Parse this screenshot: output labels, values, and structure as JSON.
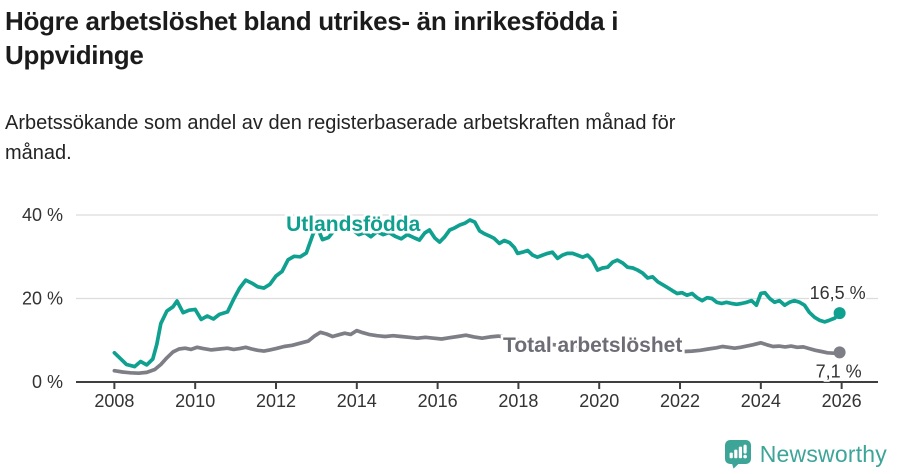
{
  "header": {
    "title_line1": "Högre arbetslöshet bland utrikes- än inrikesfödda i",
    "title_line2": "Uppvidinge",
    "subtitle_line1": "Arbetssökande som andel av den registerbaserade arbetskraften månad för",
    "subtitle_line2": "månad."
  },
  "footer": {
    "brand": "Newsworthy",
    "logo_icon": "bar-chart-speech-bubble-icon"
  },
  "colors": {
    "accent_teal": "#0fa08f",
    "line_gray": "#7e7e86",
    "label_gray": "#6d6d75",
    "axis": "#3f3f3f",
    "grid": "#dcdcdc",
    "tick_text": "#333333",
    "value_text": "#333333",
    "logo_teal": "#3da498"
  },
  "chart_data": {
    "type": "line",
    "x_ticks": [
      2008,
      2010,
      2012,
      2014,
      2016,
      2018,
      2020,
      2022,
      2024,
      2026
    ],
    "x_range": [
      2007.05,
      2026.9
    ],
    "y_ticks": [
      {
        "value": 0,
        "label": "0 %"
      },
      {
        "value": 20,
        "label": "20 %"
      },
      {
        "value": 40,
        "label": "40 %"
      }
    ],
    "y_range": [
      0,
      40
    ],
    "grid": "horizontal",
    "legend_position": "inline-labels",
    "series": [
      {
        "name": "Utlandsfödda",
        "color": "#0fa08f",
        "end_label": "16,5 %",
        "end_label_pos": "above",
        "label_anchor": {
          "x": 2012.25,
          "y": 36.2
        },
        "points": [
          [
            2008.0,
            7.0
          ],
          [
            2008.15,
            5.6
          ],
          [
            2008.3,
            4.2
          ],
          [
            2008.5,
            3.7
          ],
          [
            2008.65,
            4.9
          ],
          [
            2008.8,
            4.1
          ],
          [
            2008.95,
            5.5
          ],
          [
            2009.05,
            9.0
          ],
          [
            2009.15,
            14.0
          ],
          [
            2009.3,
            17.0
          ],
          [
            2009.45,
            18.0
          ],
          [
            2009.55,
            19.4
          ],
          [
            2009.7,
            16.6
          ],
          [
            2009.85,
            17.2
          ],
          [
            2010.0,
            17.4
          ],
          [
            2010.15,
            15.0
          ],
          [
            2010.3,
            15.8
          ],
          [
            2010.45,
            15.1
          ],
          [
            2010.6,
            16.2
          ],
          [
            2010.8,
            16.8
          ],
          [
            2010.95,
            19.8
          ],
          [
            2011.1,
            22.5
          ],
          [
            2011.25,
            24.4
          ],
          [
            2011.4,
            23.7
          ],
          [
            2011.55,
            22.8
          ],
          [
            2011.7,
            22.5
          ],
          [
            2011.85,
            23.4
          ],
          [
            2012.0,
            25.4
          ],
          [
            2012.15,
            26.5
          ],
          [
            2012.3,
            29.3
          ],
          [
            2012.45,
            30.1
          ],
          [
            2012.6,
            30.0
          ],
          [
            2012.75,
            30.9
          ],
          [
            2012.9,
            35.0
          ],
          [
            2013.0,
            37.5
          ],
          [
            2013.15,
            34.1
          ],
          [
            2013.3,
            34.6
          ],
          [
            2013.45,
            36.4
          ],
          [
            2013.6,
            36.9
          ],
          [
            2013.75,
            36.4
          ],
          [
            2013.9,
            36.4
          ],
          [
            2014.05,
            35.3
          ],
          [
            2014.2,
            35.8
          ],
          [
            2014.35,
            34.8
          ],
          [
            2014.5,
            36.0
          ],
          [
            2014.65,
            35.3
          ],
          [
            2014.8,
            35.8
          ],
          [
            2014.95,
            34.9
          ],
          [
            2015.1,
            34.3
          ],
          [
            2015.25,
            35.3
          ],
          [
            2015.43,
            34.5
          ],
          [
            2015.55,
            34.0
          ],
          [
            2015.68,
            35.7
          ],
          [
            2015.8,
            36.4
          ],
          [
            2015.93,
            34.5
          ],
          [
            2016.05,
            33.5
          ],
          [
            2016.17,
            34.7
          ],
          [
            2016.3,
            36.4
          ],
          [
            2016.42,
            36.9
          ],
          [
            2016.55,
            37.6
          ],
          [
            2016.67,
            38.0
          ],
          [
            2016.8,
            38.8
          ],
          [
            2016.92,
            38.3
          ],
          [
            2017.04,
            36.2
          ],
          [
            2017.16,
            35.5
          ],
          [
            2017.28,
            35.0
          ],
          [
            2017.4,
            34.4
          ],
          [
            2017.53,
            33.2
          ],
          [
            2017.65,
            33.9
          ],
          [
            2017.78,
            33.4
          ],
          [
            2017.9,
            32.2
          ],
          [
            2017.98,
            30.8
          ],
          [
            2018.1,
            31.1
          ],
          [
            2018.23,
            31.5
          ],
          [
            2018.35,
            30.4
          ],
          [
            2018.47,
            29.9
          ],
          [
            2018.6,
            30.4
          ],
          [
            2018.72,
            30.8
          ],
          [
            2018.84,
            31.1
          ],
          [
            2018.97,
            29.6
          ],
          [
            2019.09,
            30.4
          ],
          [
            2019.21,
            30.8
          ],
          [
            2019.34,
            30.8
          ],
          [
            2019.46,
            30.4
          ],
          [
            2019.59,
            29.9
          ],
          [
            2019.71,
            30.4
          ],
          [
            2019.83,
            29.2
          ],
          [
            2019.96,
            26.8
          ],
          [
            2020.08,
            27.3
          ],
          [
            2020.21,
            27.5
          ],
          [
            2020.33,
            28.7
          ],
          [
            2020.45,
            29.2
          ],
          [
            2020.58,
            28.5
          ],
          [
            2020.7,
            27.5
          ],
          [
            2020.83,
            27.3
          ],
          [
            2020.95,
            26.8
          ],
          [
            2021.07,
            26.1
          ],
          [
            2021.2,
            24.9
          ],
          [
            2021.32,
            25.2
          ],
          [
            2021.45,
            24.0
          ],
          [
            2021.57,
            23.3
          ],
          [
            2021.69,
            22.6
          ],
          [
            2021.81,
            21.9
          ],
          [
            2021.93,
            21.2
          ],
          [
            2022.05,
            21.4
          ],
          [
            2022.17,
            20.8
          ],
          [
            2022.3,
            21.2
          ],
          [
            2022.42,
            20.2
          ],
          [
            2022.55,
            19.5
          ],
          [
            2022.67,
            20.2
          ],
          [
            2022.79,
            20.0
          ],
          [
            2022.91,
            19.1
          ],
          [
            2023.03,
            18.8
          ],
          [
            2023.15,
            19.1
          ],
          [
            2023.28,
            18.8
          ],
          [
            2023.4,
            18.6
          ],
          [
            2023.52,
            18.8
          ],
          [
            2023.65,
            19.1
          ],
          [
            2023.77,
            19.5
          ],
          [
            2023.89,
            18.4
          ],
          [
            2024.0,
            21.2
          ],
          [
            2024.1,
            21.4
          ],
          [
            2024.22,
            20.0
          ],
          [
            2024.34,
            19.1
          ],
          [
            2024.46,
            19.5
          ],
          [
            2024.59,
            18.4
          ],
          [
            2024.71,
            19.1
          ],
          [
            2024.83,
            19.5
          ],
          [
            2024.96,
            19.1
          ],
          [
            2025.08,
            18.4
          ],
          [
            2025.2,
            16.7
          ],
          [
            2025.33,
            15.5
          ],
          [
            2025.45,
            14.8
          ],
          [
            2025.58,
            14.4
          ],
          [
            2025.7,
            14.8
          ],
          [
            2025.83,
            15.3
          ],
          [
            2025.95,
            16.5
          ]
        ]
      },
      {
        "name": "Total arbetslöshet",
        "color": "#7e7e86",
        "label_color": "#6d6d75",
        "end_label": "7,1 %",
        "end_label_pos": "below",
        "label_anchor": {
          "x": 2017.62,
          "y": 7.2
        },
        "points": [
          [
            2008.0,
            2.7
          ],
          [
            2008.2,
            2.4
          ],
          [
            2008.4,
            2.2
          ],
          [
            2008.6,
            2.1
          ],
          [
            2008.8,
            2.3
          ],
          [
            2009.0,
            3.0
          ],
          [
            2009.15,
            4.2
          ],
          [
            2009.3,
            5.8
          ],
          [
            2009.45,
            7.2
          ],
          [
            2009.6,
            7.9
          ],
          [
            2009.75,
            8.1
          ],
          [
            2009.9,
            7.8
          ],
          [
            2010.05,
            8.3
          ],
          [
            2010.2,
            8.0
          ],
          [
            2010.4,
            7.7
          ],
          [
            2010.6,
            7.9
          ],
          [
            2010.8,
            8.1
          ],
          [
            2010.95,
            7.8
          ],
          [
            2011.1,
            8.0
          ],
          [
            2011.25,
            8.3
          ],
          [
            2011.4,
            7.9
          ],
          [
            2011.55,
            7.6
          ],
          [
            2011.7,
            7.4
          ],
          [
            2011.85,
            7.7
          ],
          [
            2012.0,
            8.0
          ],
          [
            2012.2,
            8.5
          ],
          [
            2012.4,
            8.8
          ],
          [
            2012.6,
            9.3
          ],
          [
            2012.8,
            9.8
          ],
          [
            2012.95,
            11.0
          ],
          [
            2013.1,
            11.9
          ],
          [
            2013.25,
            11.5
          ],
          [
            2013.4,
            10.9
          ],
          [
            2013.55,
            11.3
          ],
          [
            2013.7,
            11.7
          ],
          [
            2013.85,
            11.4
          ],
          [
            2014.0,
            12.3
          ],
          [
            2014.15,
            11.8
          ],
          [
            2014.3,
            11.4
          ],
          [
            2014.5,
            11.1
          ],
          [
            2014.7,
            10.9
          ],
          [
            2014.9,
            11.1
          ],
          [
            2015.1,
            10.9
          ],
          [
            2015.3,
            10.7
          ],
          [
            2015.5,
            10.5
          ],
          [
            2015.7,
            10.7
          ],
          [
            2015.9,
            10.5
          ],
          [
            2016.1,
            10.3
          ],
          [
            2016.3,
            10.6
          ],
          [
            2016.5,
            10.9
          ],
          [
            2016.7,
            11.2
          ],
          [
            2016.9,
            10.8
          ],
          [
            2017.1,
            10.5
          ],
          [
            2017.3,
            10.8
          ],
          [
            2017.5,
            11.0
          ],
          [
            2017.7,
            10.7
          ],
          [
            2017.9,
            10.3
          ],
          [
            2018.1,
            9.9
          ],
          [
            2018.3,
            9.6
          ],
          [
            2018.5,
            9.3
          ],
          [
            2018.7,
            9.1
          ],
          [
            2018.9,
            8.9
          ],
          [
            2019.1,
            8.8
          ],
          [
            2019.3,
            8.6
          ],
          [
            2019.5,
            8.5
          ],
          [
            2019.7,
            8.6
          ],
          [
            2019.9,
            8.5
          ],
          [
            2020.1,
            8.8
          ],
          [
            2020.3,
            9.5
          ],
          [
            2020.5,
            9.3
          ],
          [
            2020.7,
            9.1
          ],
          [
            2020.9,
            8.8
          ],
          [
            2021.1,
            8.5
          ],
          [
            2021.3,
            8.2
          ],
          [
            2021.5,
            8.0
          ],
          [
            2021.7,
            7.8
          ],
          [
            2021.9,
            7.6
          ],
          [
            2022.1,
            7.3
          ],
          [
            2022.3,
            7.4
          ],
          [
            2022.5,
            7.6
          ],
          [
            2022.7,
            7.9
          ],
          [
            2022.9,
            8.2
          ],
          [
            2023.05,
            8.5
          ],
          [
            2023.2,
            8.3
          ],
          [
            2023.35,
            8.1
          ],
          [
            2023.5,
            8.3
          ],
          [
            2023.65,
            8.6
          ],
          [
            2023.8,
            8.9
          ],
          [
            2024.0,
            9.4
          ],
          [
            2024.15,
            8.9
          ],
          [
            2024.3,
            8.5
          ],
          [
            2024.45,
            8.6
          ],
          [
            2024.6,
            8.4
          ],
          [
            2024.75,
            8.6
          ],
          [
            2024.9,
            8.3
          ],
          [
            2025.05,
            8.4
          ],
          [
            2025.2,
            8.0
          ],
          [
            2025.35,
            7.6
          ],
          [
            2025.5,
            7.3
          ],
          [
            2025.65,
            7.0
          ],
          [
            2025.8,
            6.9
          ],
          [
            2025.95,
            7.1
          ]
        ]
      }
    ]
  }
}
